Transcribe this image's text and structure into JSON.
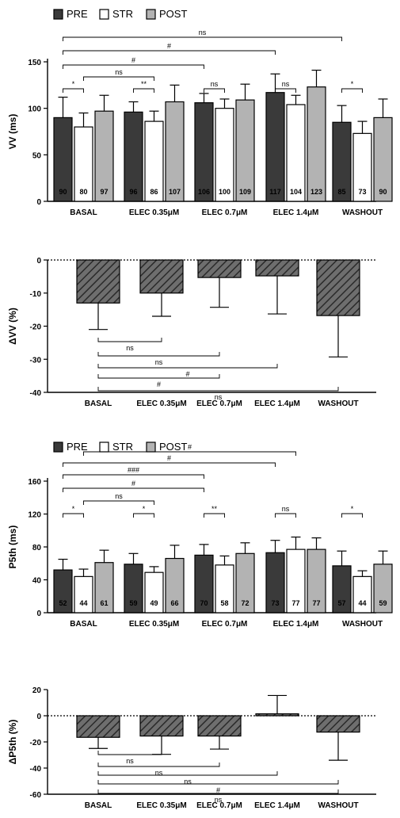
{
  "colors": {
    "pre": "#3a3a3a",
    "str": "#ffffff",
    "post": "#b3b3b3",
    "delta": "#6e6e6e",
    "stroke": "#000000"
  },
  "chart_data": [
    {
      "panel": "A",
      "type": "bar",
      "ylabel": "VV (ms)",
      "ylim": [
        0,
        150
      ],
      "yticks": [
        "0",
        "50",
        "100",
        "150"
      ],
      "categories": [
        "BASAL",
        "ELEC 0.35μM",
        "ELEC 0.7μM",
        "ELEC 1.4μM",
        "WASHOUT"
      ],
      "legend": {
        "placement": "top-left"
      },
      "series": [
        {
          "name": "PRE",
          "key": "pre",
          "values": [
            90,
            96,
            106,
            117,
            85
          ],
          "errors": [
            22,
            11,
            10,
            20,
            18
          ],
          "labels": [
            "90",
            "96",
            "106",
            "117",
            "85"
          ]
        },
        {
          "name": "STR",
          "key": "str",
          "values": [
            80,
            86,
            100,
            104,
            73
          ],
          "errors": [
            15,
            11,
            10,
            10,
            13
          ],
          "labels": [
            "80",
            "86",
            "100",
            "104",
            "73"
          ]
        },
        {
          "name": "POST",
          "key": "post",
          "values": [
            97,
            107,
            109,
            123,
            90
          ],
          "errors": [
            17,
            18,
            17,
            18,
            20
          ],
          "labels": [
            "97",
            "107",
            "109",
            "123",
            "90"
          ]
        }
      ],
      "annotations": [
        {
          "from": [
            0,
            0
          ],
          "to": [
            4,
            0
          ],
          "label": "ns",
          "level": 5
        },
        {
          "from": [
            0,
            0
          ],
          "to": [
            3,
            0
          ],
          "label": "#",
          "level": 4
        },
        {
          "from": [
            0,
            0
          ],
          "to": [
            2,
            0
          ],
          "label": "#",
          "level": 3
        },
        {
          "from": [
            0,
            1
          ],
          "to": [
            1,
            1
          ],
          "label": "ns",
          "level": 2
        },
        {
          "from": [
            0,
            0
          ],
          "to": [
            0,
            1
          ],
          "label": "*",
          "level": 1
        },
        {
          "from": [
            1,
            0
          ],
          "to": [
            1,
            1
          ],
          "label": "**",
          "level": 1
        },
        {
          "from": [
            2,
            0
          ],
          "to": [
            2,
            1
          ],
          "label": "ns",
          "level": 1
        },
        {
          "from": [
            3,
            0
          ],
          "to": [
            3,
            1
          ],
          "label": "ns",
          "level": 1
        },
        {
          "from": [
            4,
            0
          ],
          "to": [
            4,
            1
          ],
          "label": "*",
          "level": 1
        }
      ]
    },
    {
      "panel": "B",
      "type": "bar",
      "ylabel": "ΔVV (%)",
      "ylim": [
        -40,
        0
      ],
      "yticks": [
        "0",
        "-10",
        "-20",
        "-30",
        "-40"
      ],
      "categories": [
        "BASAL",
        "ELEC 0.35μM",
        "ELEC 0.7μM",
        "ELEC 1.4μM",
        "WASHOUT"
      ],
      "values": [
        -13,
        -10,
        -5.3,
        -4.8,
        -16.8
      ],
      "errors": [
        8,
        7,
        9,
        11.5,
        12.5
      ],
      "reference_line": 0,
      "annotations": [
        {
          "from": 0,
          "to": 1,
          "label": "ns",
          "level": 1
        },
        {
          "from": 0,
          "to": 2,
          "label": "ns",
          "level": 2
        },
        {
          "from": 0,
          "to": 3,
          "label": "#",
          "level": 3
        },
        {
          "from": 0,
          "to": 2,
          "label": "#",
          "level": 4
        },
        {
          "from": 0,
          "to": 4,
          "label": "ns",
          "level": 5
        }
      ]
    },
    {
      "panel": "C",
      "type": "bar",
      "ylabel": "P5th (ms)",
      "ylim": [
        0,
        160
      ],
      "yticks": [
        "0",
        "40",
        "80",
        "120",
        "160"
      ],
      "categories": [
        "BASAL",
        "ELEC 0.35μM",
        "ELEC 0.7μM",
        "ELEC 1.4μM",
        "WASHOUT"
      ],
      "legend": {
        "placement": "top-left"
      },
      "series": [
        {
          "name": "PRE",
          "key": "pre",
          "values": [
            52,
            59,
            70,
            73,
            57
          ],
          "errors": [
            13,
            13,
            13,
            15,
            18
          ],
          "labels": [
            "52",
            "59",
            "70",
            "73",
            "57"
          ]
        },
        {
          "name": "STR",
          "key": "str",
          "values": [
            44,
            49,
            58,
            77,
            44
          ],
          "errors": [
            9,
            7,
            11,
            15,
            7
          ],
          "labels": [
            "44",
            "49",
            "58",
            "77",
            "44"
          ]
        },
        {
          "name": "POST",
          "key": "post",
          "values": [
            61,
            66,
            72,
            77,
            59
          ],
          "errors": [
            15,
            16,
            13,
            14,
            16
          ],
          "labels": [
            "61",
            "66",
            "72",
            "77",
            "59"
          ]
        }
      ],
      "annotations": [
        {
          "from": [
            0,
            1
          ],
          "to": [
            3,
            1
          ],
          "label": "#",
          "level": 6
        },
        {
          "from": [
            0,
            0
          ],
          "to": [
            3,
            0
          ],
          "label": "#",
          "level": 5
        },
        {
          "from": [
            0,
            0
          ],
          "to": [
            2,
            0
          ],
          "label": "###",
          "level": 4
        },
        {
          "from": [
            0,
            0
          ],
          "to": [
            2,
            0
          ],
          "label": "#",
          "level": 3
        },
        {
          "from": [
            0,
            1
          ],
          "to": [
            1,
            1
          ],
          "label": "ns",
          "level": 2
        },
        {
          "from": [
            0,
            0
          ],
          "to": [
            0,
            1
          ],
          "label": "*",
          "level": 1
        },
        {
          "from": [
            1,
            0
          ],
          "to": [
            1,
            1
          ],
          "label": "*",
          "level": 1
        },
        {
          "from": [
            2,
            0
          ],
          "to": [
            2,
            1
          ],
          "label": "**",
          "level": 1
        },
        {
          "from": [
            3,
            0
          ],
          "to": [
            3,
            1
          ],
          "label": "ns",
          "level": 1
        },
        {
          "from": [
            4,
            0
          ],
          "to": [
            4,
            1
          ],
          "label": "*",
          "level": 1
        }
      ]
    },
    {
      "panel": "D",
      "type": "bar",
      "ylabel": "ΔP5th (%)",
      "ylim": [
        -60,
        20
      ],
      "yticks": [
        "20",
        "0",
        "-20",
        "-40",
        "-60"
      ],
      "categories": [
        "BASAL",
        "ELEC 0.35μM",
        "ELEC 0.7μM",
        "ELEC 1.4μM",
        "WASHOUT"
      ],
      "values": [
        -16.5,
        -15.5,
        -15.5,
        1.5,
        -12.5
      ],
      "errors": [
        8.5,
        14,
        10,
        14,
        21.5
      ],
      "reference_line": 0,
      "annotations": [
        {
          "from": 0,
          "to": 1,
          "label": "ns",
          "level": 1
        },
        {
          "from": 0,
          "to": 2,
          "label": "ns",
          "level": 2
        },
        {
          "from": 0,
          "to": 3,
          "label": "ns",
          "level": 3
        },
        {
          "from": 0,
          "to": 4,
          "label": "#",
          "level": 4
        },
        {
          "from": 0,
          "to": 4,
          "label": "ns",
          "level": 5
        }
      ]
    }
  ]
}
